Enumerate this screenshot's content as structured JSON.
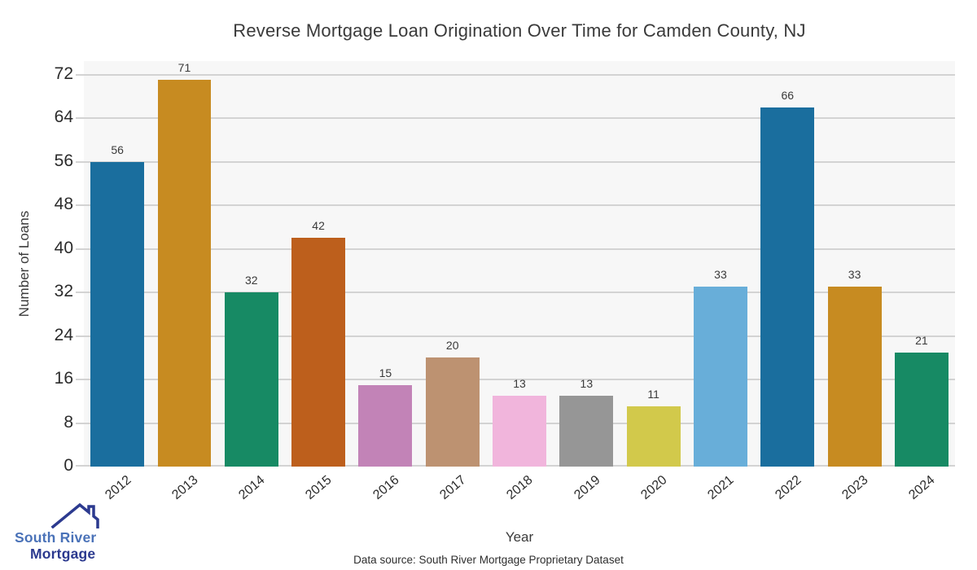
{
  "chart_data": {
    "type": "bar",
    "title": "Reverse Mortgage Loan Origination Over Time for Camden County, NJ",
    "xlabel": "Year",
    "ylabel": "Number of Loans",
    "categories": [
      "2012",
      "2013",
      "2014",
      "2015",
      "2016",
      "2017",
      "2018",
      "2019",
      "2020",
      "2021",
      "2022",
      "2023",
      "2024"
    ],
    "values": [
      56,
      71,
      32,
      42,
      15,
      20,
      13,
      13,
      11,
      33,
      66,
      33,
      21
    ],
    "bar_colors": [
      "#1a6e9e",
      "#c78b21",
      "#178a64",
      "#bd5f1c",
      "#c283b7",
      "#bd9271",
      "#f1b5dc",
      "#969696",
      "#d2c94b",
      "#68aed9",
      "#1a6e9e",
      "#c78b21",
      "#178a64"
    ],
    "yticks": [
      0,
      8,
      16,
      24,
      32,
      40,
      48,
      56,
      64,
      72
    ],
    "ylim": [
      0,
      74.5
    ],
    "grid": true,
    "legend": false,
    "plot_bg": "#f7f7f7",
    "gridline_color": "#d3d3d3",
    "value_labels_shown": true
  },
  "source_note": "Data source: South River Mortgage Proprietary Dataset",
  "logo": {
    "line1": "South River",
    "line2": "Mortgage",
    "line1_color": "#4a72b8",
    "line2_color": "#2c3a8f",
    "icon_color": "#2c3a8f"
  }
}
